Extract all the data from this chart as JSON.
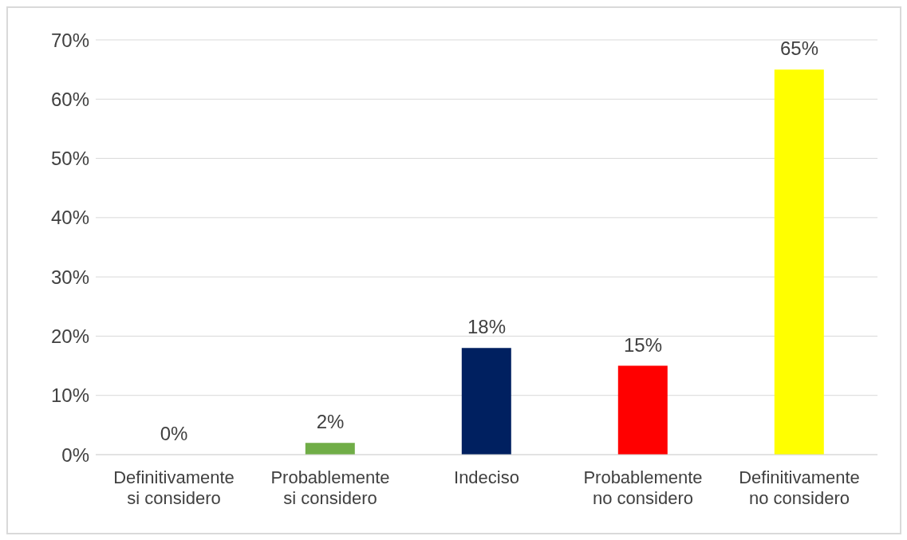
{
  "chart_data": {
    "type": "bar",
    "categories": [
      "Definitivamente si considero",
      "Probablemente si considero",
      "Indeciso",
      "Probablemente no considero",
      "Definitivamente no considero"
    ],
    "values": [
      0,
      2,
      18,
      15,
      65
    ],
    "colors": [
      "#4472c4",
      "#70ad47",
      "#002060",
      "#ff0000",
      "#ffff00"
    ],
    "value_labels": [
      "0%",
      "2%",
      "18%",
      "15%",
      "65%"
    ],
    "ylim": [
      0,
      70
    ],
    "yticks": [
      {
        "value": 0,
        "label": "0%"
      },
      {
        "value": 10,
        "label": "10%"
      },
      {
        "value": 20,
        "label": "20%"
      },
      {
        "value": 30,
        "label": "30%"
      },
      {
        "value": 40,
        "label": "40%"
      },
      {
        "value": 50,
        "label": "50%"
      },
      {
        "value": 60,
        "label": "60%"
      },
      {
        "value": 70,
        "label": "70%"
      }
    ],
    "grid": "y",
    "legend": false
  }
}
